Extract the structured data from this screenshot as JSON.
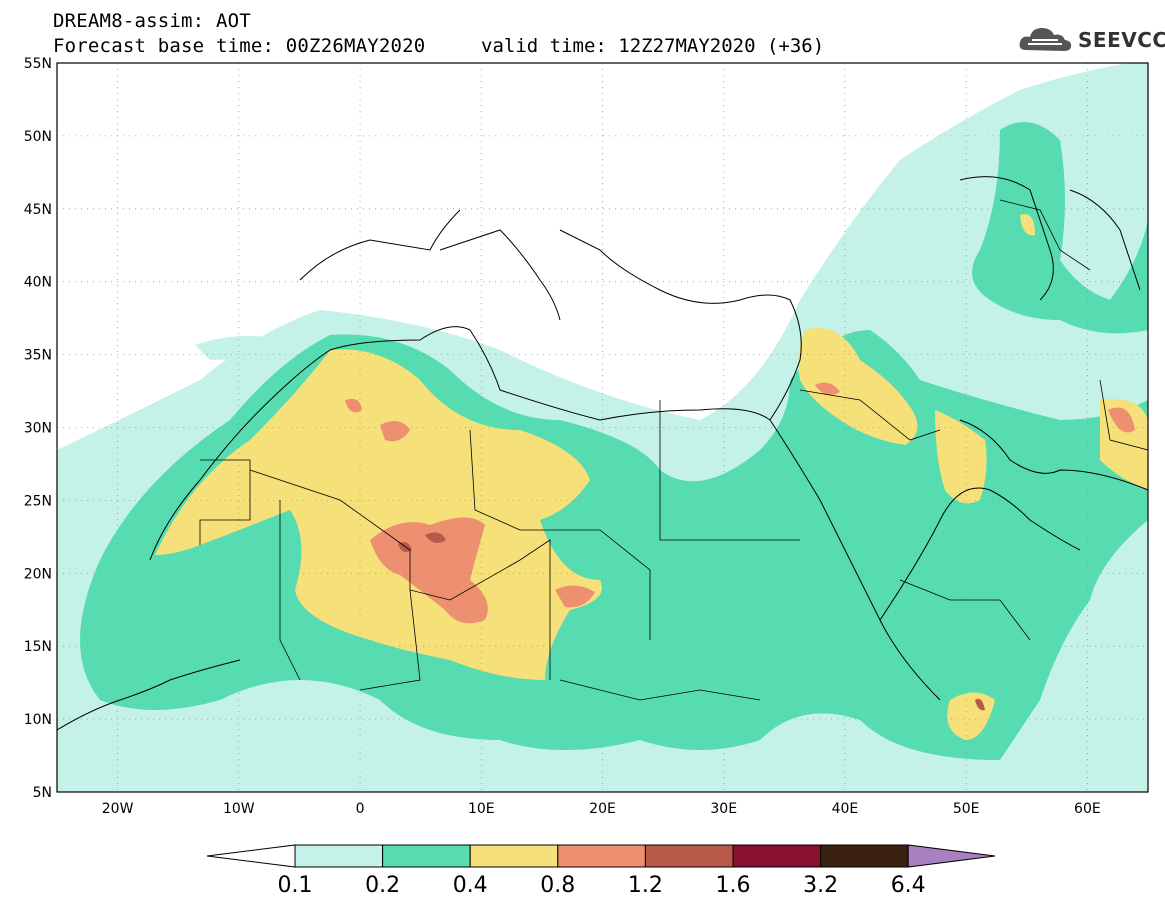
{
  "header": {
    "line1": "DREAM8-assim: AOT",
    "line2": "Forecast base time: 00Z26MAY2020",
    "valid": "valid time: 12Z27MAY2020 (+36)"
  },
  "logo": {
    "text": "SEEVCCC",
    "icon": "cloud-logo-icon"
  },
  "axes": {
    "lat_labels": [
      "55N",
      "50N",
      "45N",
      "40N",
      "35N",
      "30N",
      "25N",
      "20N",
      "15N",
      "10N",
      "5N"
    ],
    "lon_labels": [
      "20W",
      "10W",
      "0",
      "10E",
      "20E",
      "30E",
      "40E",
      "50E",
      "60E"
    ]
  },
  "colors": {
    "c01": "#c4f1e8",
    "c02": "#56dcb0",
    "c04": "#f5e07a",
    "c08": "#ec9070",
    "c12": "#b85a4a",
    "c16": "#8a1030",
    "c32": "#3a2010",
    "c64": "#a880c0"
  },
  "colorbar": {
    "labels": [
      "0.1",
      "0.2",
      "0.4",
      "0.8",
      "1.2",
      "1.6",
      "3.2",
      "6.4"
    ]
  }
}
